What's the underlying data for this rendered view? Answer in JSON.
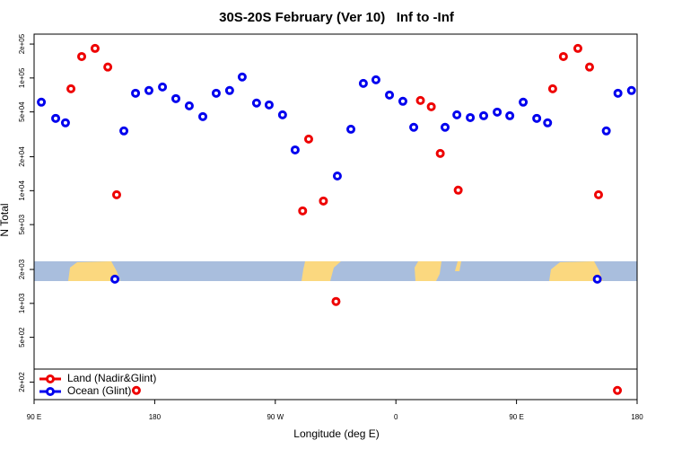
{
  "chart_data": {
    "type": "scatter",
    "title": "30S-20S February (Ver 10)   Inf to -Inf",
    "x_label": "Longitude (deg E)",
    "y_label": "N Total",
    "xlim": [
      90,
      540
    ],
    "xticks": [
      {
        "value": 90,
        "label": "90 E"
      },
      {
        "value": 180,
        "label": "180"
      },
      {
        "value": 270,
        "label": "90 W"
      },
      {
        "value": 360,
        "label": "0"
      },
      {
        "value": 450,
        "label": "90 E"
      },
      {
        "value": 540,
        "label": "180"
      }
    ],
    "ylim": [
      140,
      245000
    ],
    "log_y": true,
    "yticks": [
      {
        "value": 200000,
        "label": "2e+05"
      },
      {
        "value": 100000,
        "label": "1e+05"
      },
      {
        "value": 50000,
        "label": "5e+04"
      },
      {
        "value": 20000,
        "label": "2e+04"
      },
      {
        "value": 10000,
        "label": "1e+04"
      },
      {
        "value": 5000,
        "label": "5e+03"
      },
      {
        "value": 2000,
        "label": "2e+03"
      },
      {
        "value": 1000,
        "label": "1e+03"
      },
      {
        "value": 500,
        "label": "5e+02"
      },
      {
        "value": 200,
        "label": "2e+02"
      }
    ],
    "legend": "bottom-left",
    "series": [
      {
        "name": "Land (Nadir&Glint)",
        "color": "#ee0000",
        "x": [
          117.5,
          125.5,
          135.5,
          145,
          151.6,
          166.3,
          290.4,
          294.9,
          305.9,
          315.3,
          378.3,
          386.4,
          393.1,
          406.5,
          477,
          485,
          495.8,
          504.5,
          511.2,
          525.3
        ],
        "values": [
          80200,
          155000,
          183000,
          125000,
          9200,
          169,
          6620,
          28700,
          8100,
          1040,
          63200,
          55600,
          21400,
          10100,
          80200,
          155000,
          183000,
          125000,
          9200,
          169
        ]
      },
      {
        "name": "Ocean (Glint)",
        "color": "#0000ee",
        "x": [
          95.4,
          106.1,
          113.4,
          150.3,
          157,
          165.7,
          175.7,
          185.8,
          195.8,
          205.8,
          215.9,
          225.9,
          235.9,
          245.3,
          256,
          265.4,
          275.4,
          284.8,
          316.3,
          326.4,
          335.7,
          345.1,
          355.2,
          365.2,
          373.3,
          396.7,
          405.5,
          415.5,
          425.5,
          435.6,
          445,
          455,
          465.1,
          473.2,
          510.3,
          517,
          525.7,
          535.8
        ],
        "values": [
          61000,
          43800,
          40000,
          1640,
          33900,
          73200,
          77400,
          83200,
          65600,
          56600,
          45400,
          73200,
          77400,
          102000,
          59900,
          57700,
          47100,
          23000,
          13500,
          35100,
          89500,
          96300,
          70600,
          62100,
          36500,
          36500,
          47100,
          44500,
          46200,
          49800,
          46200,
          61000,
          43800,
          40000,
          1640,
          33900,
          73200,
          77400
        ]
      }
    ]
  }
}
